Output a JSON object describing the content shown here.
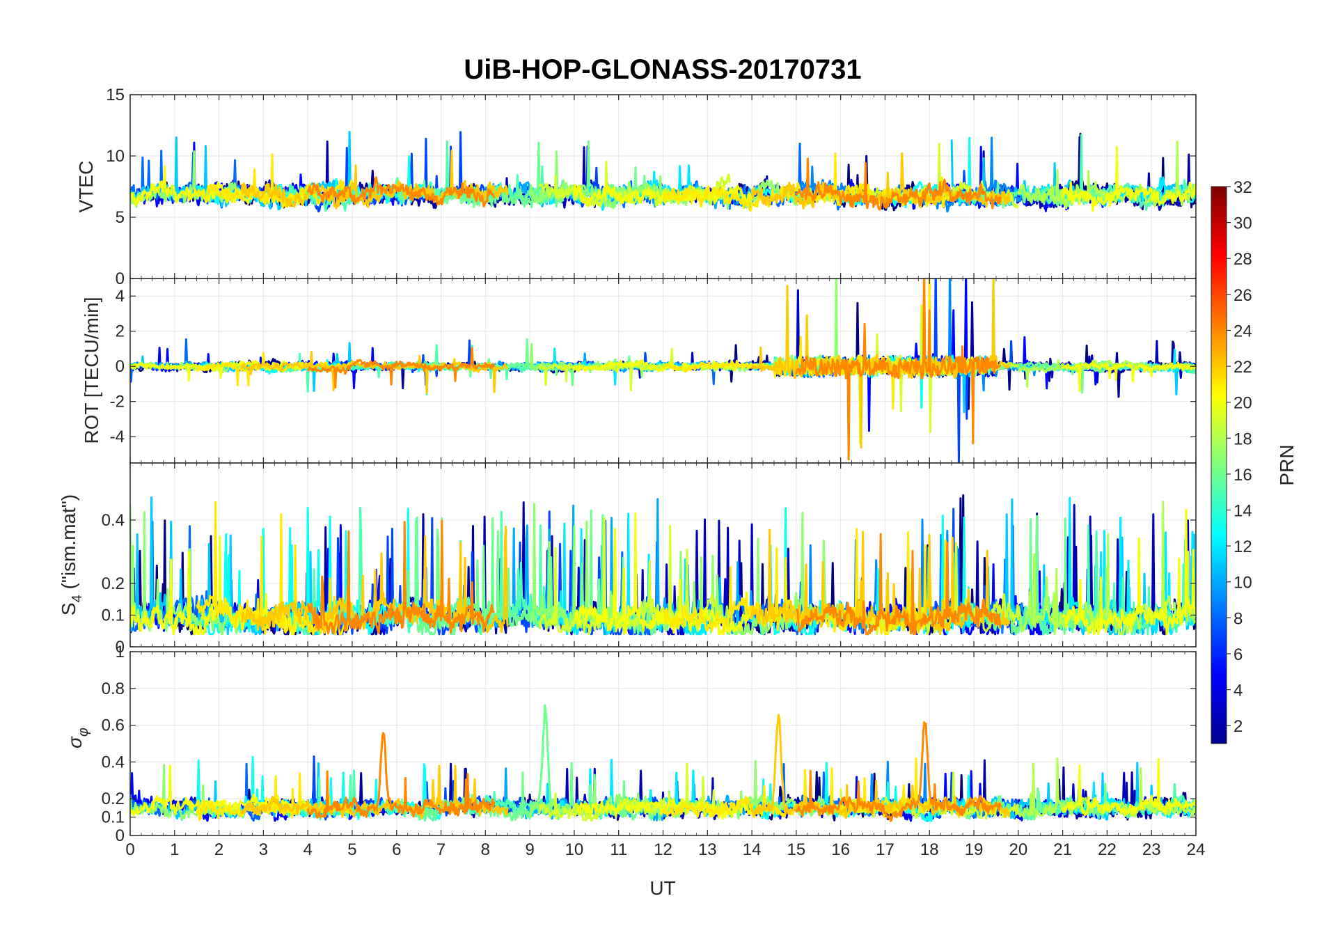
{
  "chart_data": {
    "type": "line",
    "title": "UiB-HOP-GLONASS-20170731",
    "xlabel": "UT",
    "xlim": [
      0,
      24
    ],
    "x_ticks": [
      "0",
      "1",
      "2",
      "3",
      "4",
      "5",
      "6",
      "7",
      "8",
      "9",
      "10",
      "11",
      "12",
      "13",
      "14",
      "15",
      "16",
      "17",
      "18",
      "19",
      "20",
      "21",
      "22",
      "23",
      "24"
    ],
    "grid": true,
    "colorbar": {
      "label": "PRN",
      "colormap": "jet",
      "range": [
        1,
        32
      ],
      "ticks": [
        "2",
        "4",
        "6",
        "8",
        "10",
        "12",
        "14",
        "16",
        "18",
        "20",
        "22",
        "24",
        "26",
        "28",
        "30",
        "32"
      ],
      "placement": "right"
    },
    "panels": [
      {
        "id": "vtec",
        "ylabel": "VTEC",
        "ylim": [
          0,
          15
        ],
        "y_ticks": [
          "0",
          "5",
          "10",
          "15"
        ],
        "y_tick_values": [
          0,
          5,
          10,
          15
        ],
        "baseline": 6.8,
        "noise": 0.9,
        "spike_prob": 0.01,
        "spike_amp": 5,
        "clip_min": 0
      },
      {
        "id": "rot",
        "ylabel": "ROT [TECU/min]",
        "ylim": [
          -5.5,
          5
        ],
        "y_ticks": [
          "-4",
          "-2",
          "0",
          "2",
          "4"
        ],
        "y_tick_values": [
          -4,
          -2,
          0,
          2,
          4
        ],
        "baseline": 0,
        "noise": 0.25,
        "spike_prob": 0.02,
        "spike_amp": 3,
        "active_window": [
          14.5,
          19.5
        ],
        "active_gain": 4
      },
      {
        "id": "s4",
        "ylabel_main": "S",
        "ylabel_sub": "4",
        "ylabel_rest": " (\"ism.mat\")",
        "ylim": [
          0,
          0.58
        ],
        "y_ticks": [
          "0",
          "0.1",
          "0.2",
          "0.4"
        ],
        "y_tick_values": [
          0,
          0.1,
          0.2,
          0.4
        ],
        "baseline": 0.09,
        "noise": 0.05,
        "spike_prob": 0.04,
        "spike_amp": 0.35,
        "clip_min": 0.04
      },
      {
        "id": "sigma",
        "ylabel_main": "σ",
        "ylabel_sub": "φ",
        "ylim": [
          0,
          1
        ],
        "y_ticks": [
          "0",
          "0.1",
          "0.2",
          "0.4",
          "0.6",
          "0.8",
          "1"
        ],
        "y_tick_values": [
          0,
          0.1,
          0.2,
          0.4,
          0.6,
          0.8,
          1
        ],
        "baseline": 0.15,
        "noise": 0.05,
        "spike_prob": 0.02,
        "spike_amp": 0.25,
        "clip_min": 0.08,
        "peaks": [
          {
            "x": 5.7,
            "y": 0.6,
            "prn": 24
          },
          {
            "x": 9.35,
            "y": 0.69,
            "prn": 16
          },
          {
            "x": 14.6,
            "y": 0.64,
            "prn": 22
          },
          {
            "x": 17.9,
            "y": 0.6,
            "prn": 24
          }
        ]
      }
    ],
    "series": [
      {
        "prn": 1,
        "passes": [
          [
            0,
            4.5
          ],
          [
            13.5,
            24
          ]
        ]
      },
      {
        "prn": 2,
        "passes": [
          [
            3,
            10.5
          ],
          [
            18,
            24
          ]
        ]
      },
      {
        "prn": 3,
        "passes": [
          [
            9.5,
            15.5
          ],
          [
            20,
            24
          ]
        ]
      },
      {
        "prn": 5,
        "passes": [
          [
            0,
            6
          ],
          [
            16,
            22
          ]
        ]
      },
      {
        "prn": 7,
        "passes": [
          [
            4,
            12
          ],
          [
            17.5,
            20
          ]
        ]
      },
      {
        "prn": 8,
        "passes": [
          [
            0,
            3
          ],
          [
            11,
            16
          ]
        ]
      },
      {
        "prn": 9,
        "passes": [
          [
            15,
            20.5
          ]
        ]
      },
      {
        "prn": 10,
        "passes": [
          [
            8,
            14
          ]
        ]
      },
      {
        "prn": 11,
        "passes": [
          [
            0,
            5
          ],
          [
            18.5,
            24
          ]
        ]
      },
      {
        "prn": 12,
        "passes": [
          [
            9,
            13
          ],
          [
            20.5,
            24
          ]
        ]
      },
      {
        "prn": 13,
        "passes": [
          [
            1.5,
            7
          ],
          [
            14,
            19
          ]
        ]
      },
      {
        "prn": 15,
        "passes": [
          [
            3.5,
            9.5
          ],
          [
            20,
            24
          ]
        ]
      },
      {
        "prn": 16,
        "passes": [
          [
            6,
            12
          ],
          [
            18.8,
            22
          ]
        ]
      },
      {
        "prn": 17,
        "passes": [
          [
            0,
            2.5
          ],
          [
            9,
            16
          ]
        ]
      },
      {
        "prn": 18,
        "passes": [
          [
            20,
            24
          ]
        ]
      },
      {
        "prn": 19,
        "passes": [
          [
            9.2,
            13.5
          ],
          [
            16,
            20
          ]
        ]
      },
      {
        "prn": 20,
        "passes": [
          [
            0,
            4
          ],
          [
            10,
            14
          ],
          [
            21,
            24
          ]
        ]
      },
      {
        "prn": 21,
        "passes": [
          [
            1.5,
            5
          ],
          [
            12,
            18.5
          ]
        ]
      },
      {
        "prn": 22,
        "passes": [
          [
            2.5,
            8.5
          ],
          [
            14,
            19.8
          ]
        ]
      },
      {
        "prn": 24,
        "passes": [
          [
            4,
            8.2
          ],
          [
            15,
            19.6
          ]
        ]
      }
    ]
  }
}
